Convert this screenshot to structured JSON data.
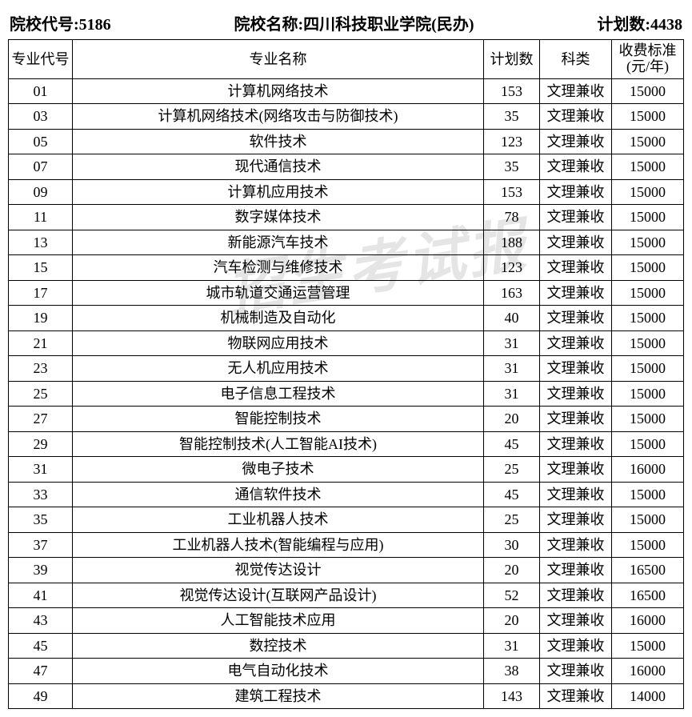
{
  "header": {
    "code_label": "院校代号:",
    "code_value": "5186",
    "name_label": "院校名称:",
    "name_value": "四川科技职业学院(民办)",
    "plan_label": "计划数:",
    "plan_value": "4438"
  },
  "columns": {
    "major_code": "专业代号",
    "major_name": "专业名称",
    "plan": "计划数",
    "category": "科类",
    "fee": "收费标准(元/年)"
  },
  "watermark_text": "招生考试报",
  "rows": [
    {
      "code": "01",
      "name": "计算机网络技术",
      "plan": "153",
      "cat": "文理兼收",
      "fee": "15000"
    },
    {
      "code": "03",
      "name": "计算机网络技术(网络攻击与防御技术)",
      "plan": "35",
      "cat": "文理兼收",
      "fee": "15000"
    },
    {
      "code": "05",
      "name": "软件技术",
      "plan": "123",
      "cat": "文理兼收",
      "fee": "15000"
    },
    {
      "code": "07",
      "name": "现代通信技术",
      "plan": "35",
      "cat": "文理兼收",
      "fee": "15000"
    },
    {
      "code": "09",
      "name": "计算机应用技术",
      "plan": "153",
      "cat": "文理兼收",
      "fee": "15000"
    },
    {
      "code": "11",
      "name": "数字媒体技术",
      "plan": "78",
      "cat": "文理兼收",
      "fee": "15000"
    },
    {
      "code": "13",
      "name": "新能源汽车技术",
      "plan": "188",
      "cat": "文理兼收",
      "fee": "15000"
    },
    {
      "code": "15",
      "name": "汽车检测与维修技术",
      "plan": "123",
      "cat": "文理兼收",
      "fee": "15000"
    },
    {
      "code": "17",
      "name": "城市轨道交通运营管理",
      "plan": "163",
      "cat": "文理兼收",
      "fee": "15000"
    },
    {
      "code": "19",
      "name": "机械制造及自动化",
      "plan": "40",
      "cat": "文理兼收",
      "fee": "15000"
    },
    {
      "code": "21",
      "name": "物联网应用技术",
      "plan": "31",
      "cat": "文理兼收",
      "fee": "15000"
    },
    {
      "code": "23",
      "name": "无人机应用技术",
      "plan": "31",
      "cat": "文理兼收",
      "fee": "15000"
    },
    {
      "code": "25",
      "name": "电子信息工程技术",
      "plan": "31",
      "cat": "文理兼收",
      "fee": "15000"
    },
    {
      "code": "27",
      "name": "智能控制技术",
      "plan": "20",
      "cat": "文理兼收",
      "fee": "15000"
    },
    {
      "code": "29",
      "name": "智能控制技术(人工智能AI技术)",
      "plan": "45",
      "cat": "文理兼收",
      "fee": "15000"
    },
    {
      "code": "31",
      "name": "微电子技术",
      "plan": "25",
      "cat": "文理兼收",
      "fee": "16000"
    },
    {
      "code": "33",
      "name": "通信软件技术",
      "plan": "45",
      "cat": "文理兼收",
      "fee": "15000"
    },
    {
      "code": "35",
      "name": "工业机器人技术",
      "plan": "25",
      "cat": "文理兼收",
      "fee": "15000"
    },
    {
      "code": "37",
      "name": "工业机器人技术(智能编程与应用)",
      "plan": "30",
      "cat": "文理兼收",
      "fee": "15000"
    },
    {
      "code": "39",
      "name": "视觉传达设计",
      "plan": "20",
      "cat": "文理兼收",
      "fee": "16500"
    },
    {
      "code": "41",
      "name": "视觉传达设计(互联网产品设计)",
      "plan": "52",
      "cat": "文理兼收",
      "fee": "16500"
    },
    {
      "code": "43",
      "name": "人工智能技术应用",
      "plan": "20",
      "cat": "文理兼收",
      "fee": "16000"
    },
    {
      "code": "45",
      "name": "数控技术",
      "plan": "31",
      "cat": "文理兼收",
      "fee": "15000"
    },
    {
      "code": "47",
      "name": "电气自动化技术",
      "plan": "38",
      "cat": "文理兼收",
      "fee": "16000"
    },
    {
      "code": "49",
      "name": "建筑工程技术",
      "plan": "143",
      "cat": "文理兼收",
      "fee": "14000"
    }
  ],
  "style": {
    "border_color": "#000000",
    "background": "#ffffff",
    "header_fontsize": 20,
    "cell_fontsize": 18,
    "watermark_color": "#d0d0d0"
  }
}
